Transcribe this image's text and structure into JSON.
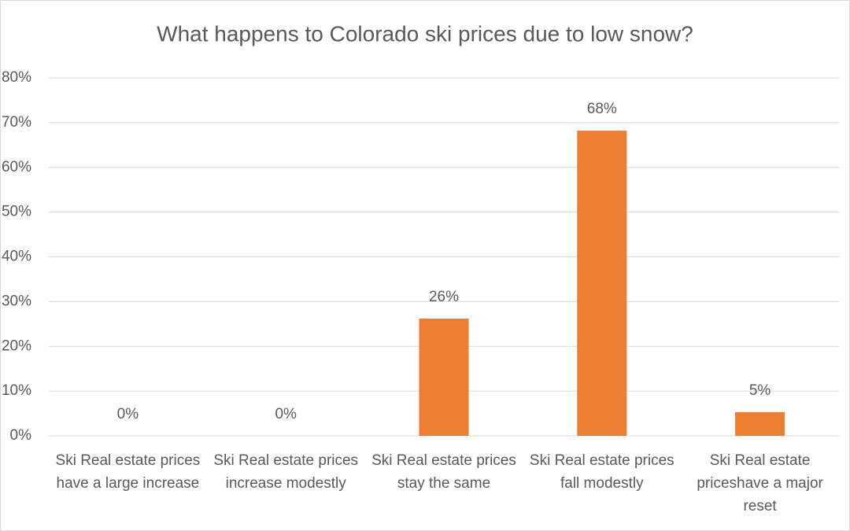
{
  "chart_data": {
    "type": "bar",
    "title": "What happens to Colorado ski prices due to low snow?",
    "categories": [
      "Ski Real estate prices have a large increase",
      "Ski Real estate prices increase modestly",
      "Ski Real estate prices stay the same",
      "Ski Real estate prices fall modestly",
      "Ski Real estate priceshave a major reset"
    ],
    "values": [
      0,
      0,
      26.2,
      68.2,
      5.3
    ],
    "value_labels": [
      "0%",
      "0%",
      "26%",
      "68%",
      "5%"
    ],
    "color": "#ed7d31",
    "ylim": [
      0,
      80
    ],
    "yticks": [
      {
        "value": 0,
        "label": "0%"
      },
      {
        "value": 10,
        "label": "10%"
      },
      {
        "value": 20,
        "label": "20%"
      },
      {
        "value": 30,
        "label": "30%"
      },
      {
        "value": 40,
        "label": "40%"
      },
      {
        "value": 50,
        "label": "50%"
      },
      {
        "value": 60,
        "label": "60%"
      },
      {
        "value": 70,
        "label": "70%"
      },
      {
        "value": 80,
        "label": "80%"
      }
    ],
    "grid": true
  }
}
